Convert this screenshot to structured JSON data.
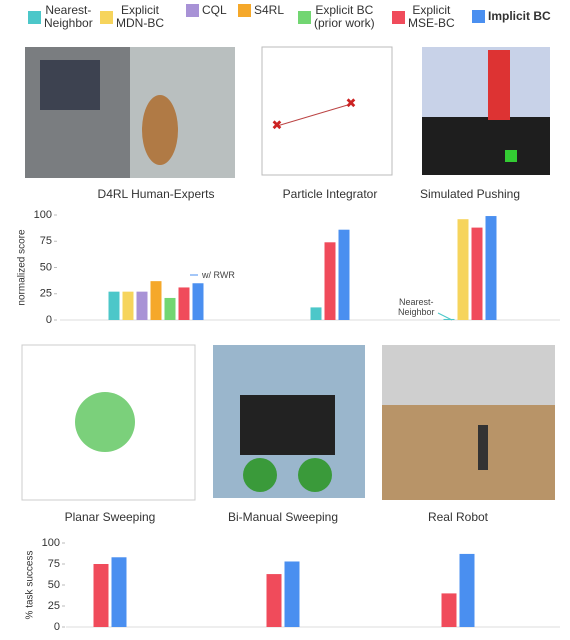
{
  "chart_data": [
    {
      "type": "bar",
      "y_label": "normalized score",
      "categories": [
        "D4RL Human-Experts",
        "Particle Integrator",
        "Simulated Pushing"
      ],
      "ylim": [
        0,
        100
      ],
      "yticks": [
        0,
        25,
        50,
        75,
        100
      ],
      "series": [
        {
          "name": "Nearest-\nNeighbor",
          "color": "#4cc7c9",
          "values": [
            27,
            12,
            1
          ]
        },
        {
          "name": "Explicit\nMDN-BC",
          "color": "#f6d45c",
          "values": [
            27,
            null,
            96
          ]
        },
        {
          "name": "CQL",
          "color": "#a892d6",
          "values": [
            27,
            null,
            null
          ]
        },
        {
          "name": "S4RL",
          "color": "#f5a82a",
          "values": [
            37,
            null,
            null
          ]
        },
        {
          "name": "Explicit BC\n(prior work)",
          "color": "#72d672",
          "values": [
            21,
            null,
            null
          ]
        },
        {
          "name": "Explicit\nMSE-BC",
          "color": "#f04b5b",
          "values": [
            31,
            74,
            88
          ]
        },
        {
          "name": "Implicit BC",
          "color": "#4a8ff0",
          "values": [
            35,
            86,
            99
          ]
        }
      ],
      "annotations": [
        "w/ RWR",
        "Nearest-\nNeighbor"
      ]
    },
    {
      "type": "bar",
      "y_label": "% task success",
      "categories": [
        "Planar Sweeping",
        "Bi-Manual Sweeping",
        "Real Robot"
      ],
      "ylim": [
        0,
        100
      ],
      "yticks": [
        0,
        25,
        50,
        75,
        100
      ],
      "series": [
        {
          "color": "#f04b5b",
          "values": [
            75,
            63,
            40
          ]
        },
        {
          "color": "#4a8ff0",
          "values": [
            83,
            78,
            87
          ]
        }
      ]
    }
  ]
}
